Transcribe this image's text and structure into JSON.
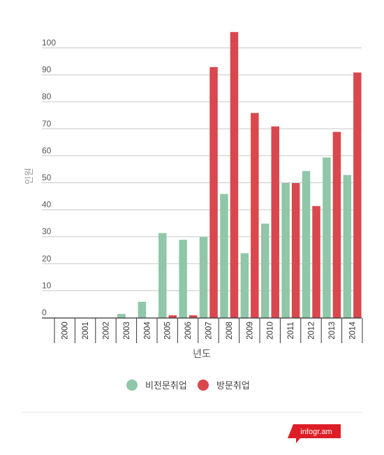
{
  "chart_data": {
    "type": "bar",
    "categories": [
      "2000",
      "2001",
      "2002",
      "2003",
      "2004",
      "2005",
      "2006",
      "2007",
      "2008",
      "2009",
      "2010",
      "2011",
      "2012",
      "2013",
      "2014"
    ],
    "series": [
      {
        "name": "비전문취업",
        "color": "#8fc7a8",
        "values": [
          0,
          0,
          0,
          1.5,
          6,
          31.5,
          29,
          30,
          46,
          24,
          35,
          50,
          54.5,
          59.5,
          53
        ]
      },
      {
        "name": "방문취업",
        "color": "#d9484e",
        "values": [
          0,
          0,
          0,
          0,
          0,
          1,
          1,
          93,
          106,
          76,
          71,
          50,
          41.5,
          69,
          91
        ]
      }
    ],
    "xlabel": "년도",
    "ylabel": "인원",
    "ylim": [
      0,
      105
    ],
    "yticks": [
      0,
      10,
      20,
      30,
      40,
      50,
      60,
      70,
      80,
      90,
      100
    ],
    "grid": true,
    "legend_position": "bottom"
  },
  "branding": {
    "label": "infogr.am",
    "color": "#dd1e26"
  }
}
